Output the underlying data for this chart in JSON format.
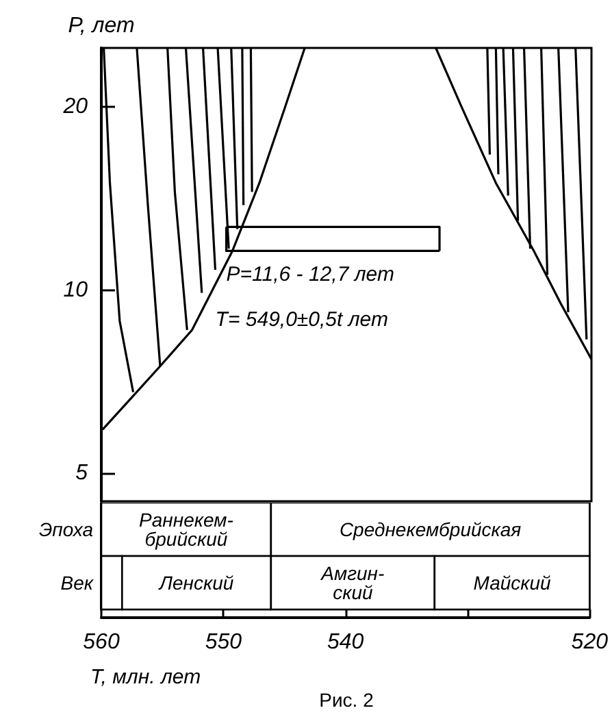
{
  "chart_data": [
    {
      "type": "line",
      "ylabel": "P, лет",
      "xlim": [
        560,
        520
      ],
      "ylim": [
        4.5,
        25
      ],
      "yticks": [
        5,
        10,
        20
      ],
      "log": "y",
      "tick_labels": "y",
      "series": [
        {
          "color": "#000000",
          "x": [
            559.9,
            557.7,
            555.2,
            552.6,
            549.3,
            547.1,
            545.0,
            543.4
          ],
          "values": [
            5.9,
            6.6,
            7.5,
            8.6,
            11.6,
            15.0,
            20,
            25
          ]
        },
        {
          "color": "#000000",
          "x": [
            532.7,
            530.6,
            527.8,
            524.7,
            522.5,
            520.0
          ],
          "values": [
            25,
            20,
            15.0,
            11.6,
            9.5,
            7.7
          ]
        },
        {
          "color": "#000000",
          "x": [
            559.8,
            559.3,
            558.5,
            557.4
          ],
          "values": [
            25,
            15.0,
            8.9,
            6.8
          ]
        },
        {
          "color": "#000000",
          "x": [
            557.1,
            556.2,
            555.2
          ],
          "values": [
            25,
            13.8,
            7.5
          ]
        },
        {
          "color": "#000000",
          "x": [
            554.6,
            554.0,
            553.0
          ],
          "values": [
            25,
            14.5,
            8.6
          ]
        },
        {
          "color": "#000000",
          "x": [
            553.1,
            551.8
          ],
          "values": [
            25,
            9.9
          ]
        },
        {
          "color": "#000000",
          "x": [
            551.7,
            550.7
          ],
          "values": [
            25,
            10.8
          ]
        },
        {
          "color": "#000000",
          "x": [
            550.5,
            549.6
          ],
          "values": [
            25,
            11.7
          ]
        },
        {
          "color": "#000000",
          "x": [
            549.4,
            548.9
          ],
          "values": [
            25,
            12.6
          ]
        },
        {
          "color": "#000000",
          "x": [
            548.5,
            548.4
          ],
          "values": [
            25,
            13.8
          ]
        },
        {
          "color": "#000000",
          "x": [
            547.8,
            547.7
          ],
          "values": [
            25,
            14.5
          ]
        },
        {
          "color": "#000000",
          "x": [
            528.5,
            528.3
          ],
          "values": [
            25,
            16.7
          ]
        },
        {
          "color": "#000000",
          "x": [
            527.8,
            527.6
          ],
          "values": [
            25,
            15.5
          ]
        },
        {
          "color": "#000000",
          "x": [
            527.2,
            526.8
          ],
          "values": [
            25,
            14.3
          ]
        },
        {
          "color": "#000000",
          "x": [
            526.4,
            526.0
          ],
          "values": [
            25,
            13.0
          ]
        },
        {
          "color": "#000000",
          "x": [
            525.5,
            525.0
          ],
          "values": [
            25,
            11.7
          ]
        },
        {
          "color": "#000000",
          "x": [
            524.1,
            523.6
          ],
          "values": [
            25,
            10.6
          ]
        },
        {
          "color": "#000000",
          "x": [
            522.7,
            521.9
          ],
          "values": [
            25,
            9.2
          ]
        },
        {
          "color": "#000000",
          "x": [
            521.3,
            520.4
          ],
          "values": [
            25,
            8.3
          ]
        },
        {
          "color": "#000000",
          "x": [
            549.8,
            532.4,
            532.4
          ],
          "values": [
            12.7,
            12.7,
            11.6
          ]
        },
        {
          "color": "#000000",
          "x": [
            532.4,
            549.8,
            549.8
          ],
          "values": [
            11.6,
            11.6,
            12.7
          ]
        }
      ],
      "annotations": [
        {
          "text": "P=11,6 - 12,7 лет",
          "x": 549.8,
          "y": 10.6
        },
        "T= 549,0±0,5t лет"
      ]
    },
    {
      "type": "bar",
      "orientation": "horizontal",
      "xlabel": "T, млн. лет",
      "categories": [
        "Эпоха",
        "Век"
      ],
      "xlim": [
        560,
        520
      ],
      "xticks": [
        560,
        550,
        540,
        {
          "value": 530,
          "label": null
        },
        520
      ],
      "series": [
        {
          "name": "Раннекем-\nбрийский",
          "color": "#ffffff",
          "values": [
            -13.9,
            null
          ],
          "base": [
            560,
            null
          ]
        },
        {
          "name": "Среднекембрийская",
          "color": "#ffffff",
          "values": [
            -26.1,
            null
          ],
          "base": [
            546.1,
            null
          ]
        },
        {
          "color": "#ffffff",
          "values": [
            null,
            -1.7
          ],
          "base": [
            null,
            560
          ]
        },
        {
          "name": "Ленский",
          "color": "#ffffff",
          "values": [
            null,
            -12.2
          ],
          "base": [
            null,
            558.3
          ]
        },
        {
          "name": "Амгин-\nский",
          "color": "#ffffff",
          "values": [
            null,
            -13.4
          ],
          "base": [
            null,
            546.1
          ]
        },
        {
          "name": "Майский",
          "color": "#ffffff",
          "values": [
            null,
            -12.7
          ],
          "base": [
            null,
            532.7
          ]
        }
      ],
      "annotations": [
        "Рис. 2"
      ]
    }
  ]
}
